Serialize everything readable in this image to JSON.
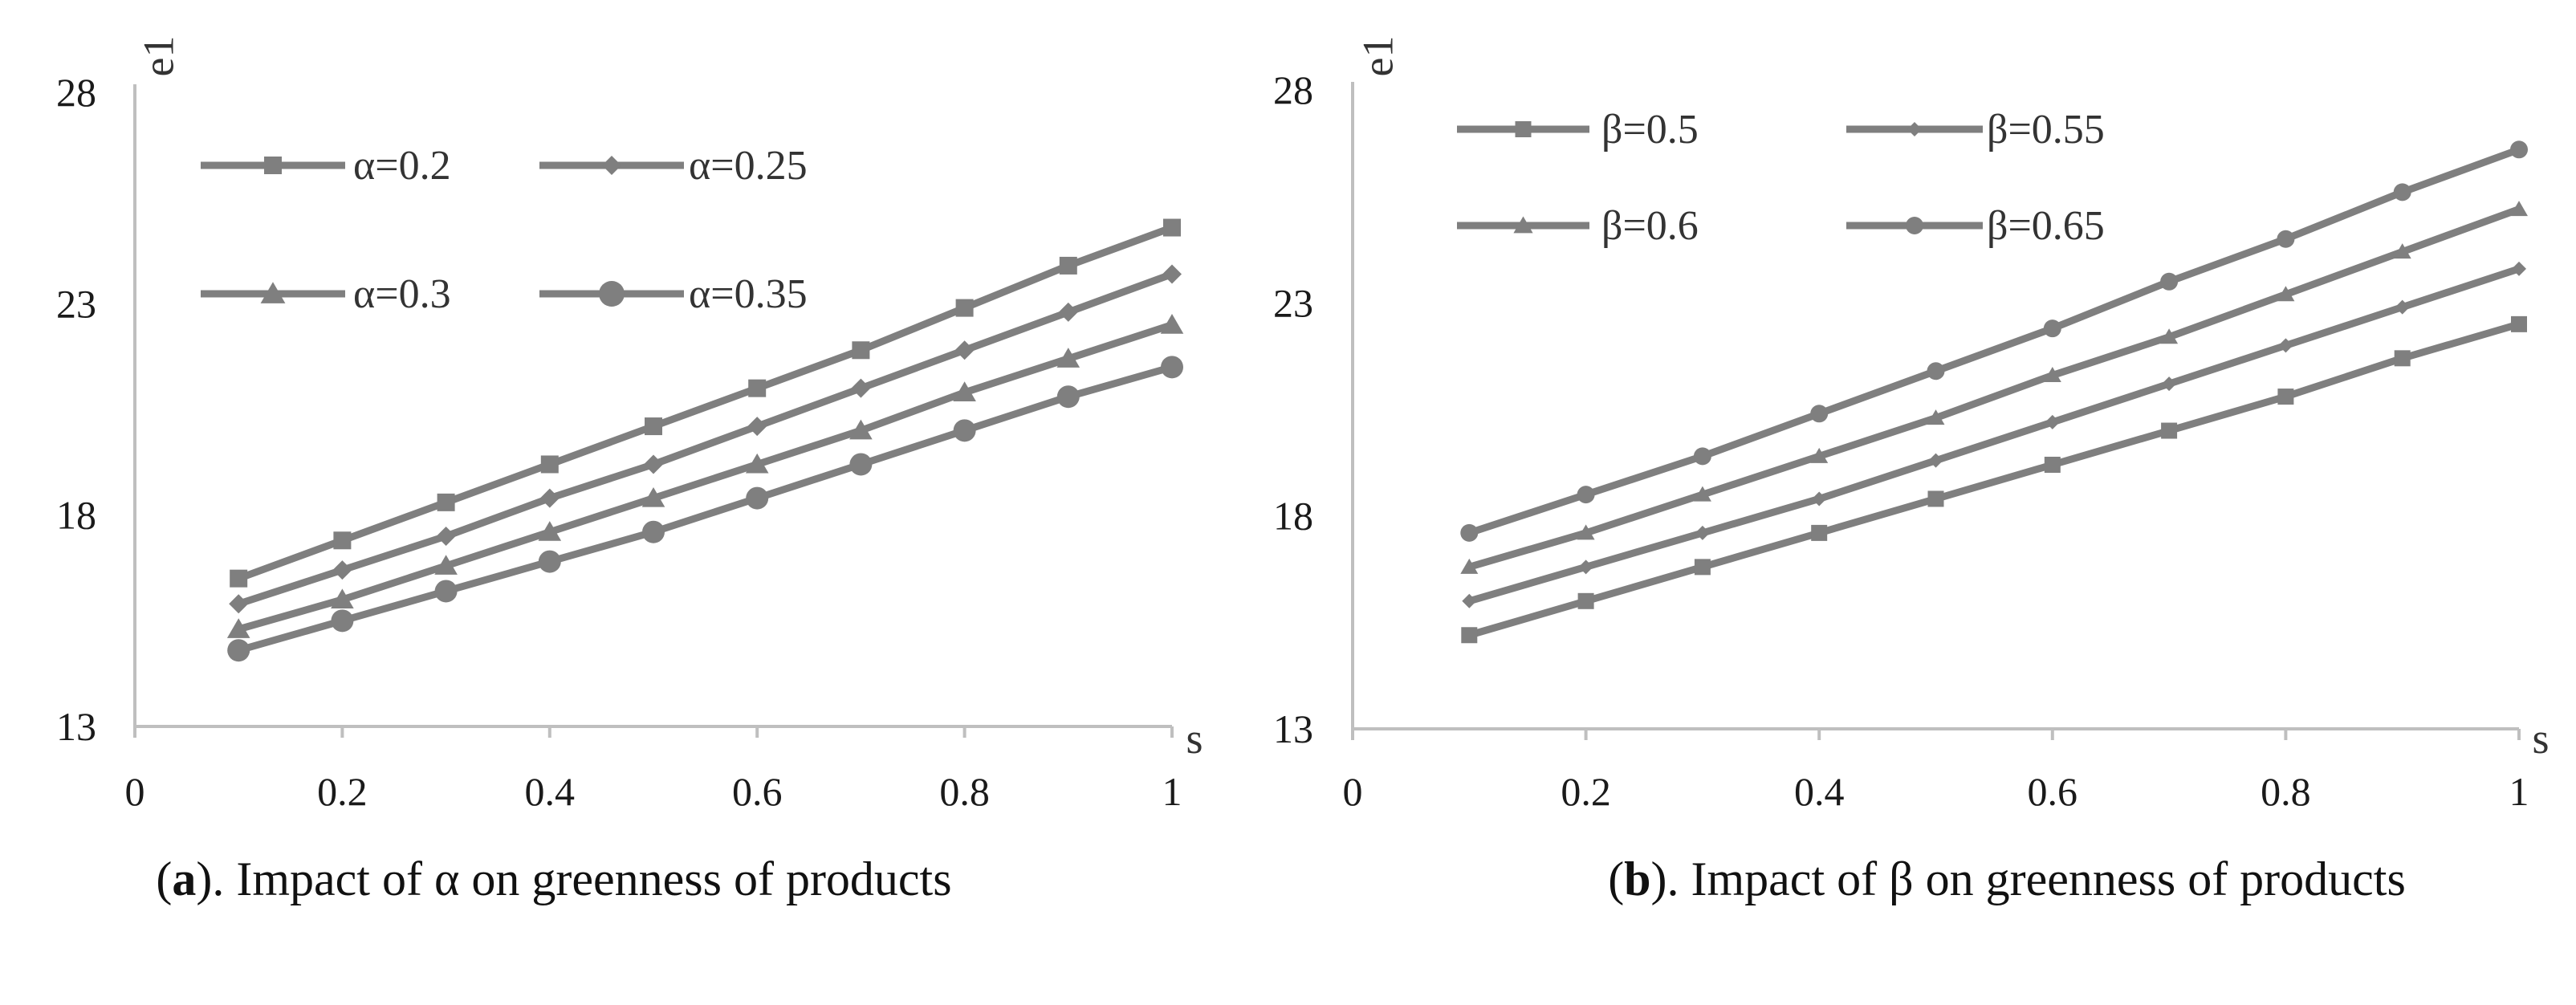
{
  "chart_data": [
    {
      "type": "line",
      "panel": "a",
      "caption_bold": "a",
      "caption_rest": "). Impact of α on greenness of products",
      "xlabel": "s",
      "ylabel": "e1",
      "xlim": [
        0,
        1
      ],
      "ylim": [
        13,
        28
      ],
      "xticks": [
        "0",
        "0.2",
        "0.4",
        "0.6",
        "0.8",
        "1"
      ],
      "yticks": [
        "13",
        "18",
        "23",
        "28"
      ],
      "x": [
        0.1,
        0.2,
        0.3,
        0.4,
        0.5,
        0.6,
        0.7,
        0.8,
        0.9,
        1.0
      ],
      "series": [
        {
          "name": "α=0.2",
          "marker": "square",
          "values": [
            16.5,
            17.4,
            18.3,
            19.2,
            20.1,
            21.0,
            21.9,
            22.9,
            23.9,
            24.8
          ]
        },
        {
          "name": "α=0.25",
          "marker": "diamond",
          "values": [
            15.9,
            16.7,
            17.5,
            18.4,
            19.2,
            20.1,
            21.0,
            21.9,
            22.8,
            23.7
          ]
        },
        {
          "name": "α=0.3",
          "marker": "triangle",
          "values": [
            15.3,
            16.0,
            16.8,
            17.6,
            18.4,
            19.2,
            20.0,
            20.9,
            21.7,
            22.5
          ]
        },
        {
          "name": "α=0.35",
          "marker": "circle",
          "values": [
            14.8,
            15.5,
            16.2,
            16.9,
            17.6,
            18.4,
            19.2,
            20.0,
            20.8,
            21.5
          ]
        }
      ]
    },
    {
      "type": "line",
      "panel": "b",
      "caption_bold": "b",
      "caption_rest": "). Impact of β on greenness of products",
      "xlabel": "s",
      "ylabel": "e1",
      "xlim": [
        0,
        1
      ],
      "ylim": [
        13,
        28
      ],
      "xticks": [
        "0",
        "0.2",
        "0.4",
        "0.6",
        "0.8",
        "1"
      ],
      "yticks": [
        "13",
        "18",
        "23",
        "28"
      ],
      "x": [
        0.1,
        0.2,
        0.3,
        0.4,
        0.5,
        0.6,
        0.7,
        0.8,
        0.9,
        1.0
      ],
      "series": [
        {
          "name": "β=0.5",
          "marker": "square",
          "values": [
            15.2,
            16.0,
            16.8,
            17.6,
            18.4,
            19.2,
            20.0,
            20.8,
            21.7,
            22.5
          ]
        },
        {
          "name": "β=0.55",
          "marker": "diamond",
          "values": [
            16.0,
            16.8,
            17.6,
            18.4,
            19.3,
            20.2,
            21.1,
            22.0,
            22.9,
            23.8
          ]
        },
        {
          "name": "β=0.6",
          "marker": "triangle",
          "values": [
            16.8,
            17.6,
            18.5,
            19.4,
            20.3,
            21.3,
            22.2,
            23.2,
            24.2,
            25.2
          ]
        },
        {
          "name": "β=0.65",
          "marker": "circle",
          "values": [
            17.6,
            18.5,
            19.4,
            20.4,
            21.4,
            22.4,
            23.5,
            24.5,
            25.6,
            26.6
          ]
        }
      ]
    }
  ],
  "colors": {
    "line": "#7f7f7f",
    "axis": "#bfbfbf",
    "text": "#1a1a1a"
  }
}
